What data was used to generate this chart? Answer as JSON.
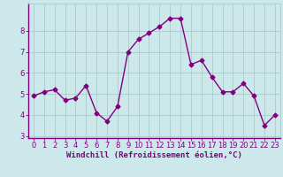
{
  "x": [
    0,
    1,
    2,
    3,
    4,
    5,
    6,
    7,
    8,
    9,
    10,
    11,
    12,
    13,
    14,
    15,
    16,
    17,
    18,
    19,
    20,
    21,
    22,
    23
  ],
  "y": [
    4.9,
    5.1,
    5.2,
    4.7,
    4.8,
    5.4,
    4.1,
    3.7,
    4.4,
    7.0,
    7.6,
    7.9,
    8.2,
    8.6,
    8.6,
    6.4,
    6.6,
    5.8,
    5.1,
    5.1,
    5.5,
    4.9,
    3.5,
    4.0
  ],
  "line_color": "#800080",
  "marker": "D",
  "markersize": 2.5,
  "linewidth": 1.0,
  "background_color": "#cce8ea",
  "grid_color": "#aacccc",
  "axis_color": "#800080",
  "tick_color": "#800080",
  "xlabel": "Windchill (Refroidissement éolien,°C)",
  "xlabel_fontsize": 6.5,
  "tick_fontsize": 6.0,
  "ylabel_ticks": [
    3,
    4,
    5,
    6,
    7,
    8
  ],
  "ylim": [
    2.9,
    9.3
  ],
  "xlim": [
    -0.5,
    23.5
  ],
  "xtick_labels": [
    "0",
    "1",
    "2",
    "3",
    "4",
    "5",
    "6",
    "7",
    "8",
    "9",
    "10",
    "11",
    "12",
    "13",
    "14",
    "15",
    "16",
    "17",
    "18",
    "19",
    "20",
    "21",
    "22",
    "23"
  ]
}
